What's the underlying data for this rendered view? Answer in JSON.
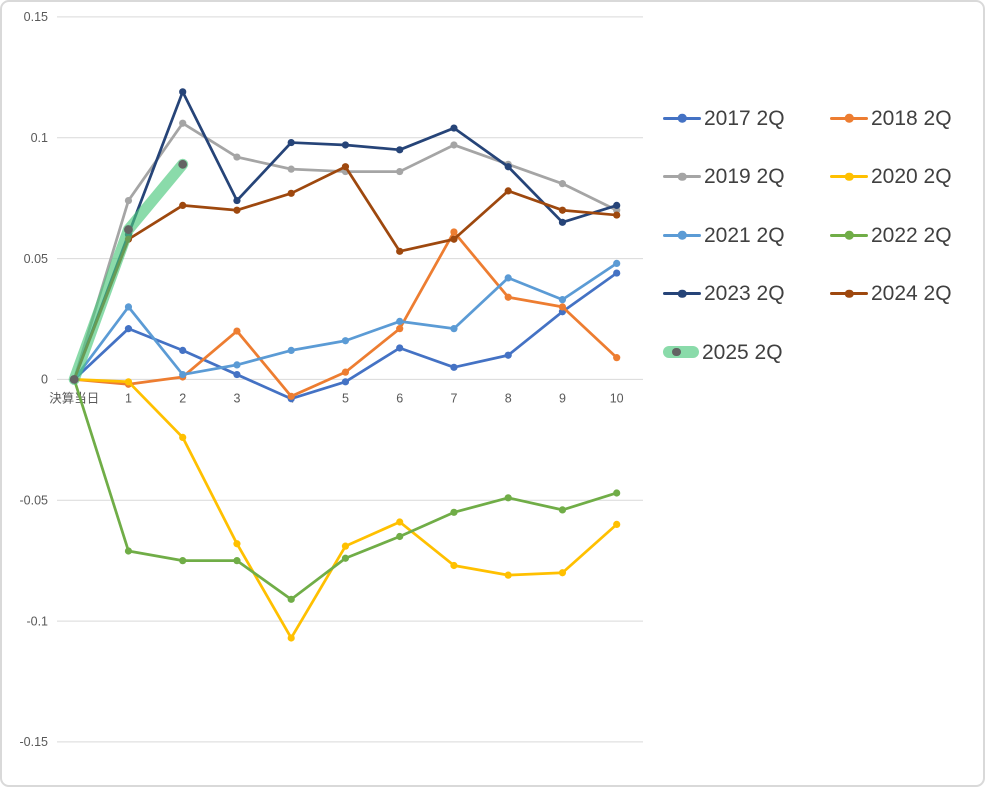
{
  "chart_data": {
    "type": "line",
    "title": "",
    "xlabel": "",
    "ylabel": "",
    "x_categories": [
      "決算当日",
      "1",
      "2",
      "3",
      "4",
      "5",
      "6",
      "7",
      "8",
      "9",
      "10"
    ],
    "y_ticks": [
      0.15,
      0.1,
      0.05,
      0,
      -0.05,
      -0.1,
      -0.15
    ],
    "y_tick_labels": [
      "0.15",
      "0.1",
      "0.05",
      "0",
      "-0.05",
      "-0.1",
      "-0.15"
    ],
    "ylim": [
      -0.15,
      0.15
    ],
    "grid": true,
    "grid_color": "#D9D9D9",
    "axis_label_color": "#595959",
    "legend_position": "right",
    "legend_columns": 2,
    "legend_text_color": "#404040",
    "series": [
      {
        "name": "2017 2Q",
        "color": "#4472C4",
        "values": [
          0,
          0.021,
          0.012,
          0.002,
          -0.008,
          -0.001,
          0.013,
          0.005,
          0.01,
          0.028,
          0.044
        ]
      },
      {
        "name": "2018 2Q",
        "color": "#ED7D31",
        "values": [
          0,
          -0.002,
          0.001,
          0.02,
          -0.007,
          0.003,
          0.021,
          0.061,
          0.034,
          0.03,
          0.009
        ]
      },
      {
        "name": "2019 2Q",
        "color": "#A5A5A5",
        "values": [
          0,
          0.074,
          0.106,
          0.092,
          0.087,
          0.086,
          0.086,
          0.097,
          0.089,
          0.081,
          0.07
        ]
      },
      {
        "name": "2020 2Q",
        "color": "#FFC000",
        "values": [
          0,
          -0.001,
          -0.024,
          -0.068,
          -0.107,
          -0.069,
          -0.059,
          -0.077,
          -0.081,
          -0.08,
          -0.06
        ]
      },
      {
        "name": "2021 2Q",
        "color": "#5B9BD5",
        "values": [
          0,
          0.03,
          0.002,
          0.006,
          0.012,
          0.016,
          0.024,
          0.021,
          0.042,
          0.033,
          0.048
        ]
      },
      {
        "name": "2022 2Q",
        "color": "#70AD47",
        "values": [
          0,
          -0.071,
          -0.075,
          -0.075,
          -0.091,
          -0.074,
          -0.065,
          -0.055,
          -0.049,
          -0.054,
          -0.047
        ]
      },
      {
        "name": "2023 2Q",
        "color": "#264478",
        "values": [
          0,
          0.06,
          0.119,
          0.074,
          0.098,
          0.097,
          0.095,
          0.104,
          0.088,
          0.065,
          0.072
        ]
      },
      {
        "name": "2024 2Q",
        "color": "#9E480E",
        "values": [
          0,
          0.058,
          0.072,
          0.07,
          0.077,
          0.088,
          0.053,
          0.058,
          0.078,
          0.07,
          0.068
        ]
      },
      {
        "name": "2025 2Q",
        "color": "#4CC77C",
        "opacity": 0.65,
        "line_width": 11,
        "highlight": true,
        "marker_color": "#636363",
        "marker_size": 4.4,
        "values": [
          0,
          0.062,
          0.089
        ]
      }
    ]
  }
}
